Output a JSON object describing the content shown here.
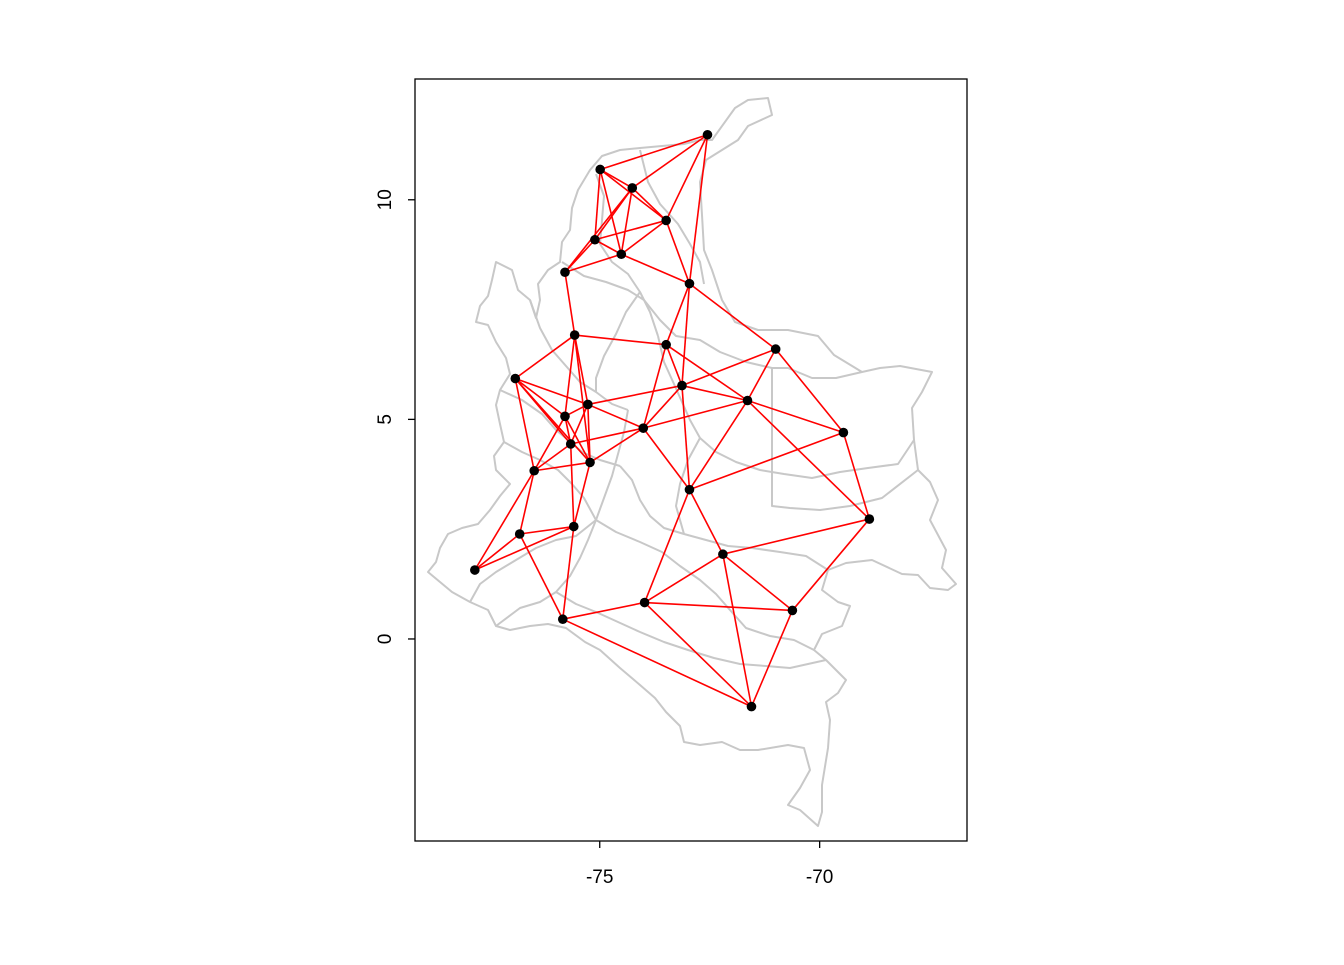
{
  "colors": {
    "background": "#ffffff",
    "boundary": "#c8c8c8",
    "edge": "#ff0000",
    "node": "#000000",
    "axis": "#000000"
  },
  "chart_data": {
    "type": "scatter",
    "title": "",
    "xlabel": "",
    "ylabel": "",
    "xlim": [
      -79.2,
      -66.65
    ],
    "ylim": [
      -4.6,
      12.75
    ],
    "x_ticks": [
      {
        "value": -75,
        "label": "-75"
      },
      {
        "value": -70,
        "label": "-70"
      }
    ],
    "y_ticks": [
      {
        "value": 0,
        "label": "0"
      },
      {
        "value": 5,
        "label": "5"
      },
      {
        "value": 10,
        "label": "10"
      }
    ],
    "grid": false,
    "series": [
      {
        "points": [
          {
            "id": "p01",
            "lon": -72.55,
            "lat": 11.48
          },
          {
            "id": "p02",
            "lon": -74.99,
            "lat": 10.69
          },
          {
            "id": "p03",
            "lon": -74.26,
            "lat": 10.27
          },
          {
            "id": "p04",
            "lon": -73.49,
            "lat": 9.53
          },
          {
            "id": "p05",
            "lon": -75.11,
            "lat": 9.09
          },
          {
            "id": "p06",
            "lon": -74.51,
            "lat": 8.76
          },
          {
            "id": "p07",
            "lon": -75.79,
            "lat": 8.35
          },
          {
            "id": "p08",
            "lon": -72.96,
            "lat": 8.09
          },
          {
            "id": "p09",
            "lon": -75.57,
            "lat": 6.92
          },
          {
            "id": "p10",
            "lon": -73.49,
            "lat": 6.7
          },
          {
            "id": "p11",
            "lon": -71.0,
            "lat": 6.6
          },
          {
            "id": "p12",
            "lon": -76.92,
            "lat": 5.93
          },
          {
            "id": "p13",
            "lon": -73.13,
            "lat": 5.77
          },
          {
            "id": "p14",
            "lon": -71.64,
            "lat": 5.43
          },
          {
            "id": "p15",
            "lon": -75.27,
            "lat": 5.34
          },
          {
            "id": "p16",
            "lon": -75.79,
            "lat": 5.07
          },
          {
            "id": "p17",
            "lon": -74.01,
            "lat": 4.8
          },
          {
            "id": "p18",
            "lon": -69.46,
            "lat": 4.7
          },
          {
            "id": "p19",
            "lon": -75.66,
            "lat": 4.44
          },
          {
            "id": "p20",
            "lon": -75.22,
            "lat": 4.02
          },
          {
            "id": "p21",
            "lon": -76.49,
            "lat": 3.83
          },
          {
            "id": "p22",
            "lon": -72.96,
            "lat": 3.4
          },
          {
            "id": "p23",
            "lon": -68.87,
            "lat": 2.73
          },
          {
            "id": "p24",
            "lon": -75.59,
            "lat": 2.56
          },
          {
            "id": "p25",
            "lon": -76.82,
            "lat": 2.39
          },
          {
            "id": "p26",
            "lon": -72.2,
            "lat": 1.93
          },
          {
            "id": "p27",
            "lon": -77.84,
            "lat": 1.57
          },
          {
            "id": "p28",
            "lon": -73.98,
            "lat": 0.83
          },
          {
            "id": "p29",
            "lon": -70.62,
            "lat": 0.65
          },
          {
            "id": "p30",
            "lon": -75.84,
            "lat": 0.45
          },
          {
            "id": "p31",
            "lon": -71.55,
            "lat": -1.54
          }
        ]
      }
    ],
    "edges": [
      [
        "p01",
        "p02"
      ],
      [
        "p01",
        "p03"
      ],
      [
        "p01",
        "p04"
      ],
      [
        "p01",
        "p08"
      ],
      [
        "p02",
        "p03"
      ],
      [
        "p02",
        "p04"
      ],
      [
        "p02",
        "p05"
      ],
      [
        "p02",
        "p06"
      ],
      [
        "p03",
        "p04"
      ],
      [
        "p03",
        "p05"
      ],
      [
        "p03",
        "p06"
      ],
      [
        "p03",
        "p07"
      ],
      [
        "p04",
        "p05"
      ],
      [
        "p04",
        "p06"
      ],
      [
        "p04",
        "p08"
      ],
      [
        "p05",
        "p06"
      ],
      [
        "p05",
        "p07"
      ],
      [
        "p06",
        "p07"
      ],
      [
        "p06",
        "p08"
      ],
      [
        "p07",
        "p09"
      ],
      [
        "p08",
        "p10"
      ],
      [
        "p08",
        "p13"
      ],
      [
        "p08",
        "p11"
      ],
      [
        "p09",
        "p10"
      ],
      [
        "p09",
        "p12"
      ],
      [
        "p09",
        "p15"
      ],
      [
        "p09",
        "p16"
      ],
      [
        "p09",
        "p20"
      ],
      [
        "p10",
        "p13"
      ],
      [
        "p10",
        "p14"
      ],
      [
        "p10",
        "p17"
      ],
      [
        "p11",
        "p13"
      ],
      [
        "p11",
        "p14"
      ],
      [
        "p11",
        "p18"
      ],
      [
        "p12",
        "p15"
      ],
      [
        "p12",
        "p16"
      ],
      [
        "p12",
        "p19"
      ],
      [
        "p12",
        "p20"
      ],
      [
        "p12",
        "p21"
      ],
      [
        "p13",
        "p14"
      ],
      [
        "p13",
        "p15"
      ],
      [
        "p13",
        "p17"
      ],
      [
        "p13",
        "p22"
      ],
      [
        "p14",
        "p18"
      ],
      [
        "p14",
        "p17"
      ],
      [
        "p14",
        "p22"
      ],
      [
        "p14",
        "p23"
      ],
      [
        "p15",
        "p16"
      ],
      [
        "p15",
        "p19"
      ],
      [
        "p15",
        "p20"
      ],
      [
        "p15",
        "p17"
      ],
      [
        "p16",
        "p19"
      ],
      [
        "p16",
        "p20"
      ],
      [
        "p16",
        "p21"
      ],
      [
        "p17",
        "p19"
      ],
      [
        "p17",
        "p20"
      ],
      [
        "p17",
        "p22"
      ],
      [
        "p18",
        "p22"
      ],
      [
        "p18",
        "p23"
      ],
      [
        "p19",
        "p21"
      ],
      [
        "p19",
        "p24"
      ],
      [
        "p20",
        "p24"
      ],
      [
        "p21",
        "p20"
      ],
      [
        "p21",
        "p25"
      ],
      [
        "p21",
        "p27"
      ],
      [
        "p22",
        "p26"
      ],
      [
        "p22",
        "p28"
      ],
      [
        "p23",
        "p26"
      ],
      [
        "p23",
        "p29"
      ],
      [
        "p24",
        "p25"
      ],
      [
        "p24",
        "p27"
      ],
      [
        "p24",
        "p30"
      ],
      [
        "p25",
        "p27"
      ],
      [
        "p25",
        "p30"
      ],
      [
        "p26",
        "p28"
      ],
      [
        "p26",
        "p29"
      ],
      [
        "p26",
        "p31"
      ],
      [
        "p28",
        "p29"
      ],
      [
        "p28",
        "p30"
      ],
      [
        "p28",
        "p31"
      ],
      [
        "p30",
        "p31"
      ],
      [
        "p29",
        "p31"
      ]
    ]
  }
}
